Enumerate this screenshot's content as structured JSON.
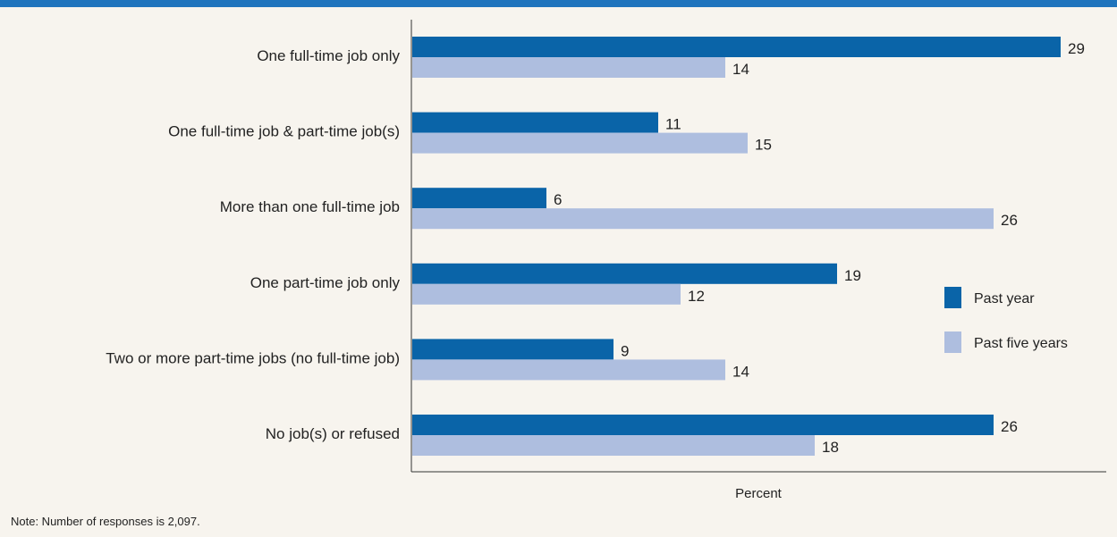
{
  "chart_data": {
    "type": "bar",
    "orientation": "horizontal",
    "categories": [
      "One full-time job only",
      "One full-time job & part-time job(s)",
      "More than one full-time job",
      "One part-time job only",
      "Two or more part-time jobs (no full-time job)",
      "No job(s) or refused"
    ],
    "series": [
      {
        "name": "Past year",
        "color": "#0a64a8",
        "values": [
          29,
          11,
          6,
          19,
          9,
          26
        ]
      },
      {
        "name": "Past five years",
        "color": "#aebedf",
        "values": [
          14,
          15,
          26,
          12,
          14,
          18
        ]
      }
    ],
    "xlabel": "Percent",
    "xlim": [
      0,
      29
    ],
    "grid": false,
    "legend_position": "right"
  },
  "note": "Note: Number of responses is 2,097."
}
